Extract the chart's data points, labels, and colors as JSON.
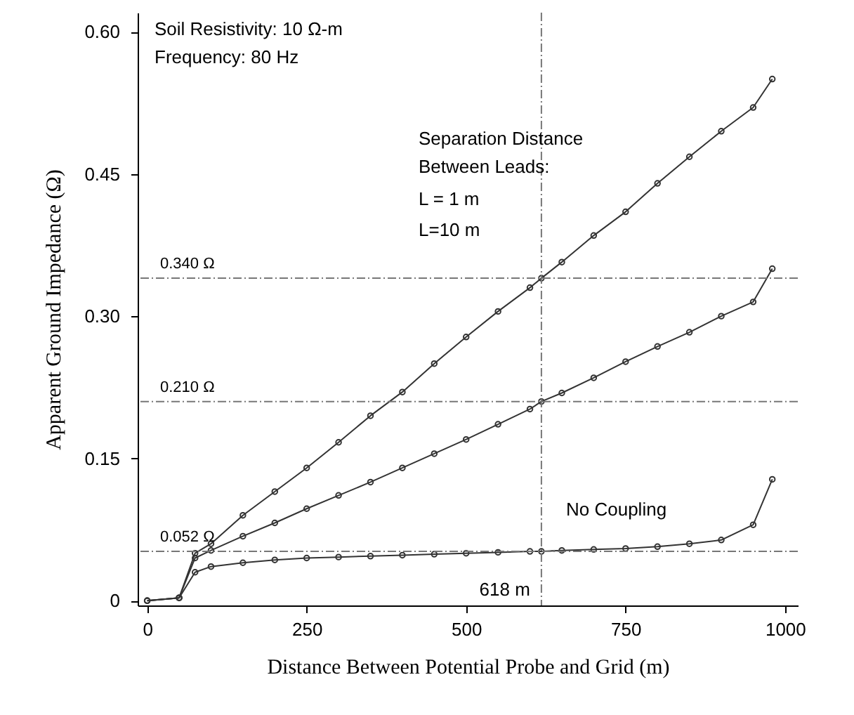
{
  "chart_data": {
    "type": "line",
    "xlabel": "Distance Between Potential Probe and Grid (m)",
    "ylabel": "Apparent Ground Impedance (Ω)",
    "x": [
      0,
      50,
      75,
      100,
      150,
      200,
      250,
      300,
      350,
      400,
      450,
      500,
      550,
      600,
      618,
      650,
      700,
      750,
      800,
      850,
      900,
      950,
      980
    ],
    "series": [
      {
        "color": "#333333",
        "values": [
          0,
          0.003,
          0.05,
          0.06,
          0.09,
          0.115,
          0.14,
          0.167,
          0.195,
          0.22,
          0.25,
          0.278,
          0.305,
          0.33,
          0.34,
          0.357,
          0.385,
          0.41,
          0.44,
          0.468,
          0.495,
          0.52,
          0.55
        ]
      },
      {
        "color": "#333333",
        "values": [
          0,
          0.003,
          0.045,
          0.053,
          0.068,
          0.082,
          0.097,
          0.111,
          0.125,
          0.14,
          0.155,
          0.17,
          0.186,
          0.202,
          0.21,
          0.219,
          0.235,
          0.252,
          0.268,
          0.283,
          0.3,
          0.315,
          0.35
        ]
      },
      {
        "color": "#333333",
        "values": [
          0,
          0.003,
          0.03,
          0.036,
          0.04,
          0.043,
          0.045,
          0.046,
          0.047,
          0.048,
          0.049,
          0.05,
          0.051,
          0.052,
          0.052,
          0.053,
          0.054,
          0.055,
          0.057,
          0.06,
          0.064,
          0.08,
          0.128
        ]
      }
    ],
    "xlim": [
      -15,
      1020
    ],
    "ylim": [
      -0.005,
      0.62
    ],
    "xticks": [
      0,
      250,
      500,
      750,
      1000
    ],
    "yticks": [
      0,
      0.15,
      {
        "value": 0.3,
        "label": "0.30"
      },
      0.45,
      {
        "value": 0.6,
        "label": "0.60"
      }
    ],
    "ref_lines": [
      {
        "axis": "y",
        "value": 0.34,
        "label": "0.340 Ω",
        "line_style": "dashed",
        "color": "#777777"
      },
      {
        "axis": "y",
        "value": 0.21,
        "label": "0.210 Ω",
        "line_style": "dashed",
        "color": "#777777"
      },
      {
        "axis": "y",
        "value": 0.052,
        "label": "0.052 Ω",
        "line_style": "dashed",
        "color": "#777777"
      },
      {
        "axis": "x",
        "value": 618,
        "label": "618 m",
        "line_style": "dashed",
        "color": "#777777"
      }
    ],
    "annotations": [
      "Soil Resistivity: 10 Ω-m",
      "Frequency: 80 Hz",
      "Separation Distance",
      "Between Leads:",
      "L = 1 m",
      "L=10 m",
      "No Coupling"
    ],
    "marker": "circle",
    "line_style": "solid",
    "grid": false
  }
}
